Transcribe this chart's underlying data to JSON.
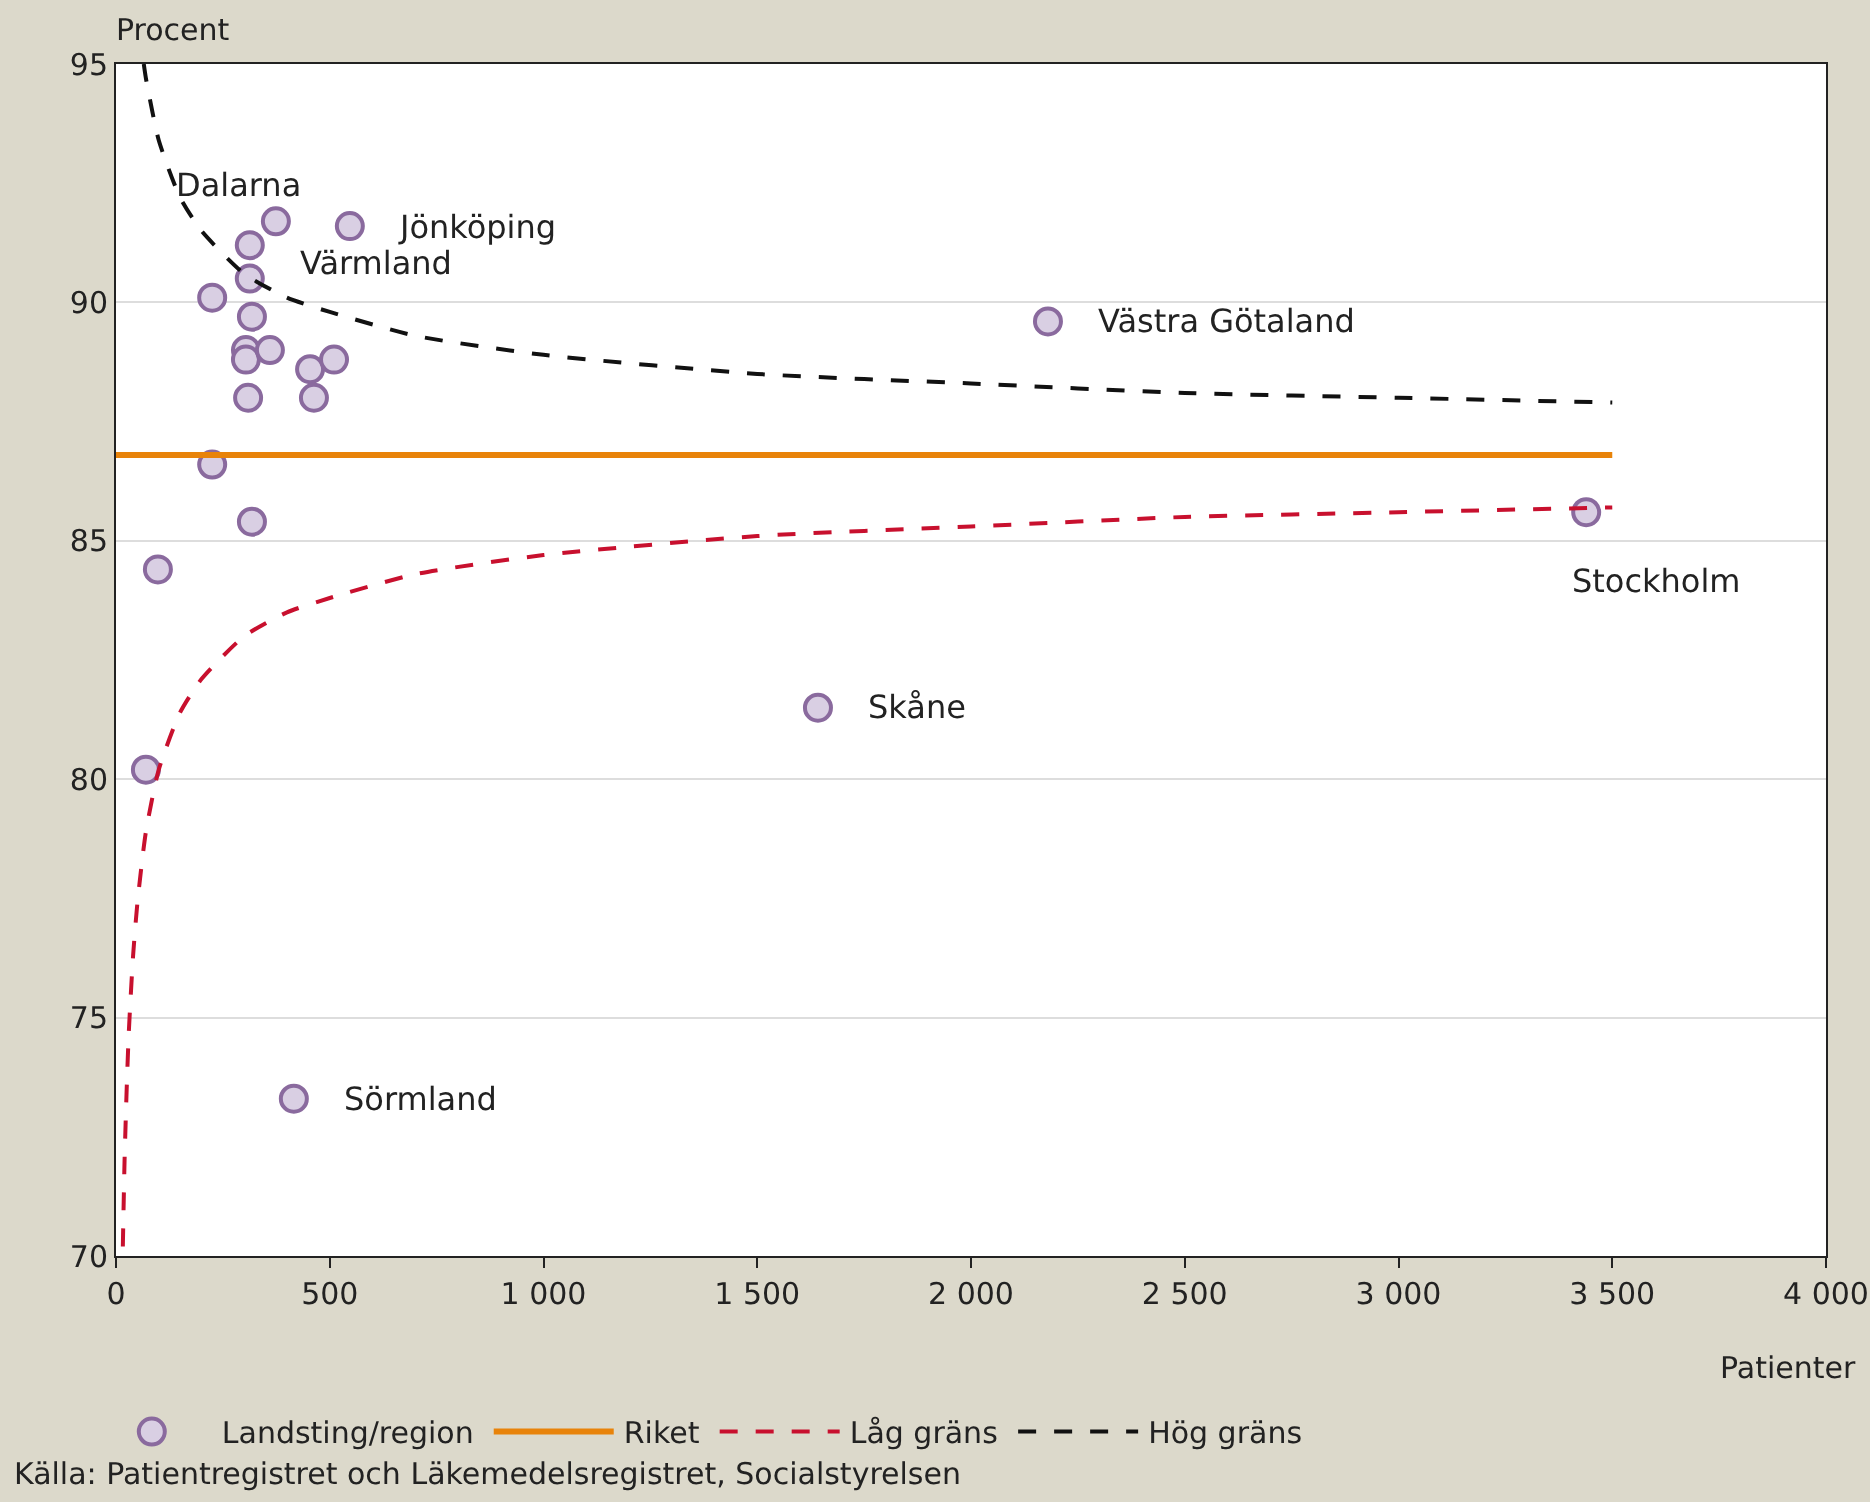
{
  "chart_data": {
    "type": "scatter",
    "xlabel": "Patienter",
    "ylabel": "Procent",
    "xlim": [
      0,
      4000
    ],
    "ylim": [
      70,
      95
    ],
    "xticks": [
      0,
      {
        "value": 500,
        "label": "500"
      },
      {
        "value": 1000,
        "label": "1 000"
      },
      {
        "value": 1500,
        "label": "1 500"
      },
      {
        "value": 2000,
        "label": "2 000"
      },
      {
        "value": 2500,
        "label": "2 500"
      },
      {
        "value": 3000,
        "label": "3 000"
      },
      {
        "value": 3500,
        "label": "3 500"
      },
      {
        "value": 4000,
        "label": "4 000"
      }
    ],
    "yticks": [
      70,
      75,
      80,
      85,
      90,
      95
    ],
    "grid": "y",
    "legend": "bottom",
    "series": [
      {
        "name": "Landsting/region",
        "marker": "circle",
        "color": "#d9cfe3",
        "x": [
          70,
          98,
          225,
          225,
          374,
          547,
          313,
          313,
          318,
          304,
          304,
          360,
          309,
          454,
          510,
          463,
          318,
          416,
          1642,
          2180,
          3439
        ],
        "values": [
          80.2,
          84.4,
          90.1,
          86.6,
          91.7,
          91.6,
          91.2,
          90.5,
          89.7,
          89.0,
          88.8,
          89.0,
          88.0,
          88.6,
          88.8,
          88.0,
          85.4,
          73.3,
          81.5,
          89.6,
          85.6
        ]
      },
      {
        "name": "Riket",
        "type": "line",
        "line_style": "solid",
        "color": "#e8830a",
        "x": [
          0,
          3500
        ],
        "values": [
          86.8,
          86.8
        ]
      },
      {
        "name": "Låg gräns",
        "type": "line",
        "line_style": "dashed",
        "color": "#c8102e",
        "x": [
          16,
          20,
          25,
          30,
          40,
          50,
          70,
          100,
          150,
          200,
          300,
          400,
          500,
          700,
          1000,
          1500,
          2000,
          2500,
          3000,
          3500
        ],
        "values": [
          70.2,
          72.0,
          73.5,
          74.7,
          76.3,
          77.4,
          78.9,
          80.2,
          81.4,
          82.1,
          83.0,
          83.5,
          83.8,
          84.3,
          84.7,
          85.1,
          85.3,
          85.5,
          85.6,
          85.7
        ]
      },
      {
        "name": "Hög gräns",
        "type": "line",
        "line_style": "dashed",
        "color": "#111111",
        "x": [
          65,
          70,
          100,
          150,
          200,
          300,
          400,
          500,
          700,
          1000,
          1500,
          2000,
          2500,
          3000,
          3500
        ],
        "values": [
          95.0,
          94.7,
          93.4,
          92.2,
          91.5,
          90.6,
          90.1,
          89.8,
          89.3,
          88.9,
          88.5,
          88.3,
          88.1,
          88.0,
          87.9
        ]
      }
    ],
    "annotations": [
      {
        "text": "Dalarna",
        "x": 313,
        "y": 91.2
      },
      {
        "text": "Jönköping",
        "x": 547,
        "y": 91.6
      },
      {
        "text": "Värmland",
        "x": 313,
        "y": 90.5
      },
      {
        "text": "Västra Götaland",
        "x": 2180,
        "y": 89.6
      },
      {
        "text": "Stockholm",
        "x": 3439,
        "y": 85.6
      },
      {
        "text": "Skåne",
        "x": 1642,
        "y": 81.5
      },
      {
        "text": "Sörmland",
        "x": 416,
        "y": 73.3
      },
      "Källa: Patientregistret och Läkemedelsregistret, Socialstyrelsen"
    ]
  }
}
